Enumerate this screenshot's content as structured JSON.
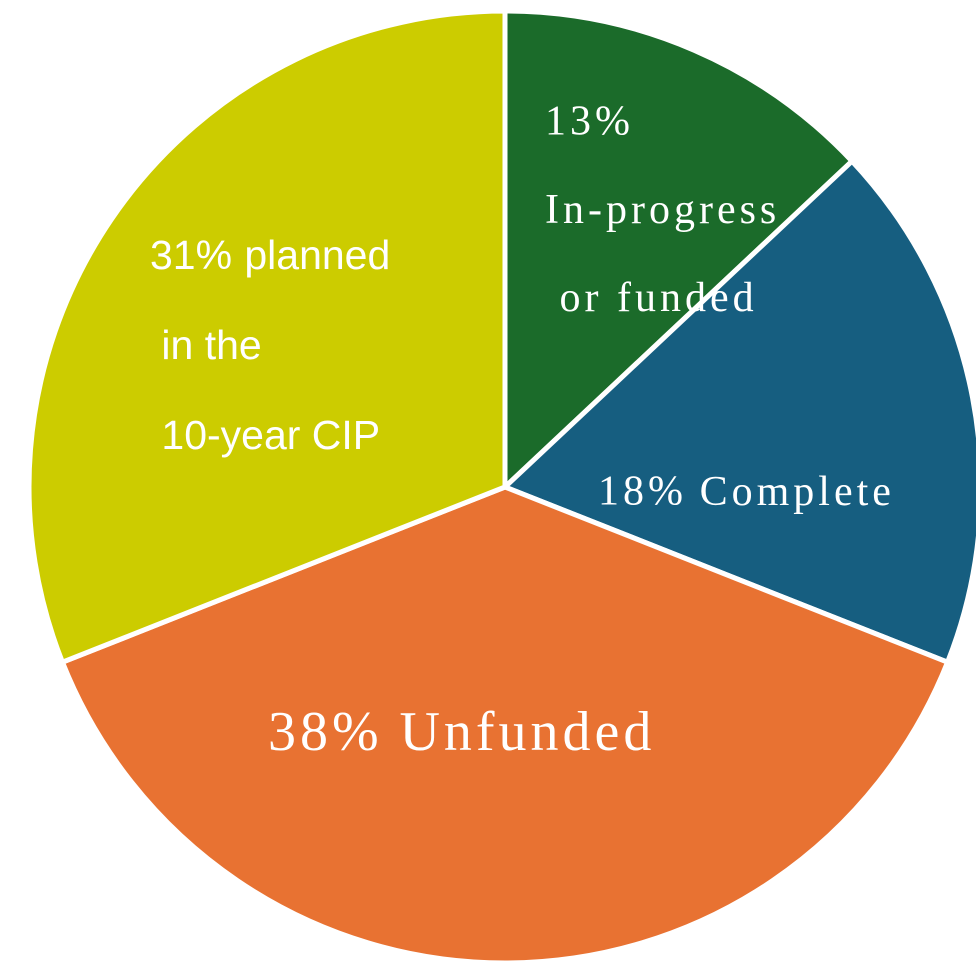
{
  "chart_data": {
    "type": "pie",
    "categories": [
      "In-progress or funded",
      "Complete",
      "Unfunded",
      "planned in the 10-year CIP"
    ],
    "values": [
      13,
      18,
      38,
      31
    ],
    "value_labels": [
      "13%",
      "18%",
      "38%",
      "31%"
    ],
    "colors": [
      "#1b6b2a",
      "#165e80",
      "#e87232",
      "#cccc00"
    ]
  }
}
